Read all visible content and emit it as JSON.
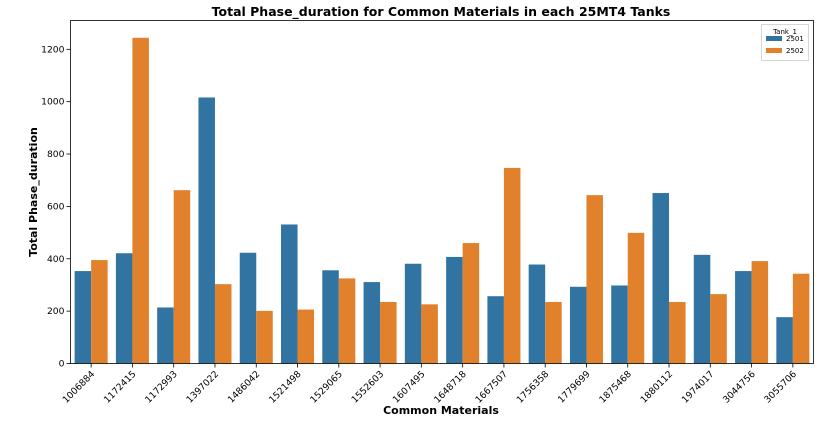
{
  "chart_data": {
    "type": "bar",
    "title": "Total Phase_duration for Common Materials in each 25MT4 Tanks",
    "xlabel": "Common Materials",
    "ylabel": "Total Phase_duration",
    "ylim": [
      0,
      1310
    ],
    "yticks": [
      0,
      200,
      400,
      600,
      800,
      1000,
      1200
    ],
    "ytick_labels": [
      "0",
      "200",
      "400",
      "600",
      "800",
      "1000",
      "1200"
    ],
    "grid": false,
    "legend_position": "top-right",
    "legend_title": "Tank_1",
    "categories": [
      "1006884",
      "1172415",
      "1172993",
      "1397022",
      "1486042",
      "1521498",
      "1529065",
      "1552603",
      "1607495",
      "1648718",
      "1667507",
      "1756358",
      "1779699",
      "1875468",
      "1880112",
      "1974017",
      "3044756",
      "3055706"
    ],
    "series": [
      {
        "name": "2501",
        "color": "#3274a1",
        "values": [
          353,
          421,
          214,
          1016,
          423,
          531,
          356,
          311,
          381,
          407,
          257,
          378,
          293,
          298,
          651,
          415,
          353,
          177
        ]
      },
      {
        "name": "2502",
        "color": "#e1812c",
        "values": [
          395,
          1244,
          662,
          303,
          201,
          206,
          325,
          235,
          226,
          460,
          747,
          235,
          643,
          499,
          235,
          265,
          391,
          343
        ]
      }
    ]
  }
}
